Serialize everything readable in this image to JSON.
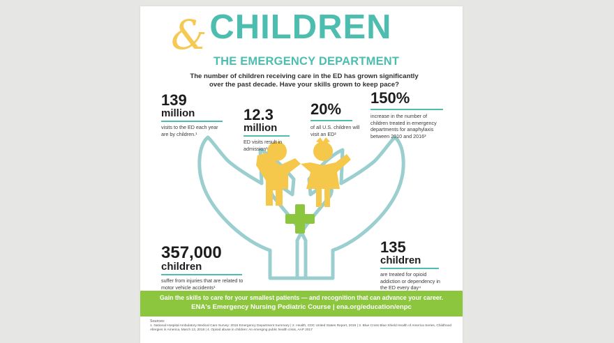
{
  "header": {
    "title_main": "CHILDREN",
    "ampersand": "&",
    "title_sub": "THE EMERGENCY DEPARTMENT",
    "intro": "The number of children receiving care in the ED has grown significantly over the past decade. Have your skills grown to keep pace?"
  },
  "stats": {
    "s1": {
      "value": "139",
      "unit": "million",
      "text": "visits to the ED each year are by children.¹"
    },
    "s2": {
      "value": "12.3",
      "unit": "million",
      "text": "ED visits result in admission¹"
    },
    "s3": {
      "value": "20%",
      "text": "of all U.S. children will visit an ED²"
    },
    "s4": {
      "value": "150%",
      "text": "increase in the number of children treated in emergency departments for anaphylaxis between 2010 and 2016³"
    },
    "s5": {
      "value": "357,000",
      "unit": "children",
      "text": "suffer from injuries that are related to motor vehicle accidents¹"
    },
    "s6": {
      "value": "135",
      "unit": "children",
      "text": "are treated for opioid addiction or dependency in the ED every day⁴"
    }
  },
  "banner": {
    "line1": "Gain the skills to care for your smallest patients — and recognition that can advance your career.",
    "line2": "ENA's Emergency Nursing Pediatric Course | ena.org/education/enpc"
  },
  "sources": {
    "heading": "Sources:",
    "text": "1. National Hospital Ambulatory Medical Care Survey: 2015 Emergency Department Summary | 2. Health, CDC United States Report, 2016 | 3. Blue Cross Blue Shield Health of America Series, Childhood Allergies in America, March 13, 2018 | 4. Opioid abuse in children: An emerging public health crisis, AAP 2017"
  },
  "colors": {
    "teal": "#4dbdaf",
    "yellow": "#f5c74a",
    "green": "#8cc63f",
    "hands": "#9bcfcf"
  }
}
